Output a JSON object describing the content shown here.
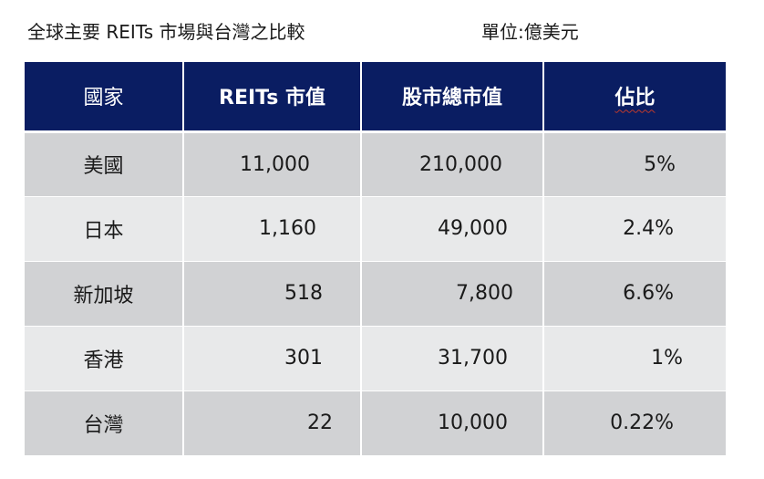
{
  "caption": {
    "title": "全球主要 REITs 市場與台灣之比較",
    "unit": "單位:億美元"
  },
  "table": {
    "headers": [
      "國家",
      "REITs 市值",
      "股市總市值",
      "佔比"
    ],
    "rows": [
      {
        "country": "美國",
        "reits_cap": "11,000",
        "market_cap": "210,000",
        "ratio": "5%"
      },
      {
        "country": "日本",
        "reits_cap": "1,160",
        "market_cap": "49,000",
        "ratio": "2.4%"
      },
      {
        "country": "新加坡",
        "reits_cap": "518",
        "market_cap": "7,800",
        "ratio": "6.6%"
      },
      {
        "country": "香港",
        "reits_cap": "301",
        "market_cap": "31,700",
        "ratio": "1%"
      },
      {
        "country": "台灣",
        "reits_cap": "22",
        "market_cap": "10,000",
        "ratio": "0.22%"
      }
    ]
  },
  "colors": {
    "header_bg": "#0a1d62",
    "row_odd": "#d1d2d4",
    "row_even": "#e8e9ea"
  }
}
